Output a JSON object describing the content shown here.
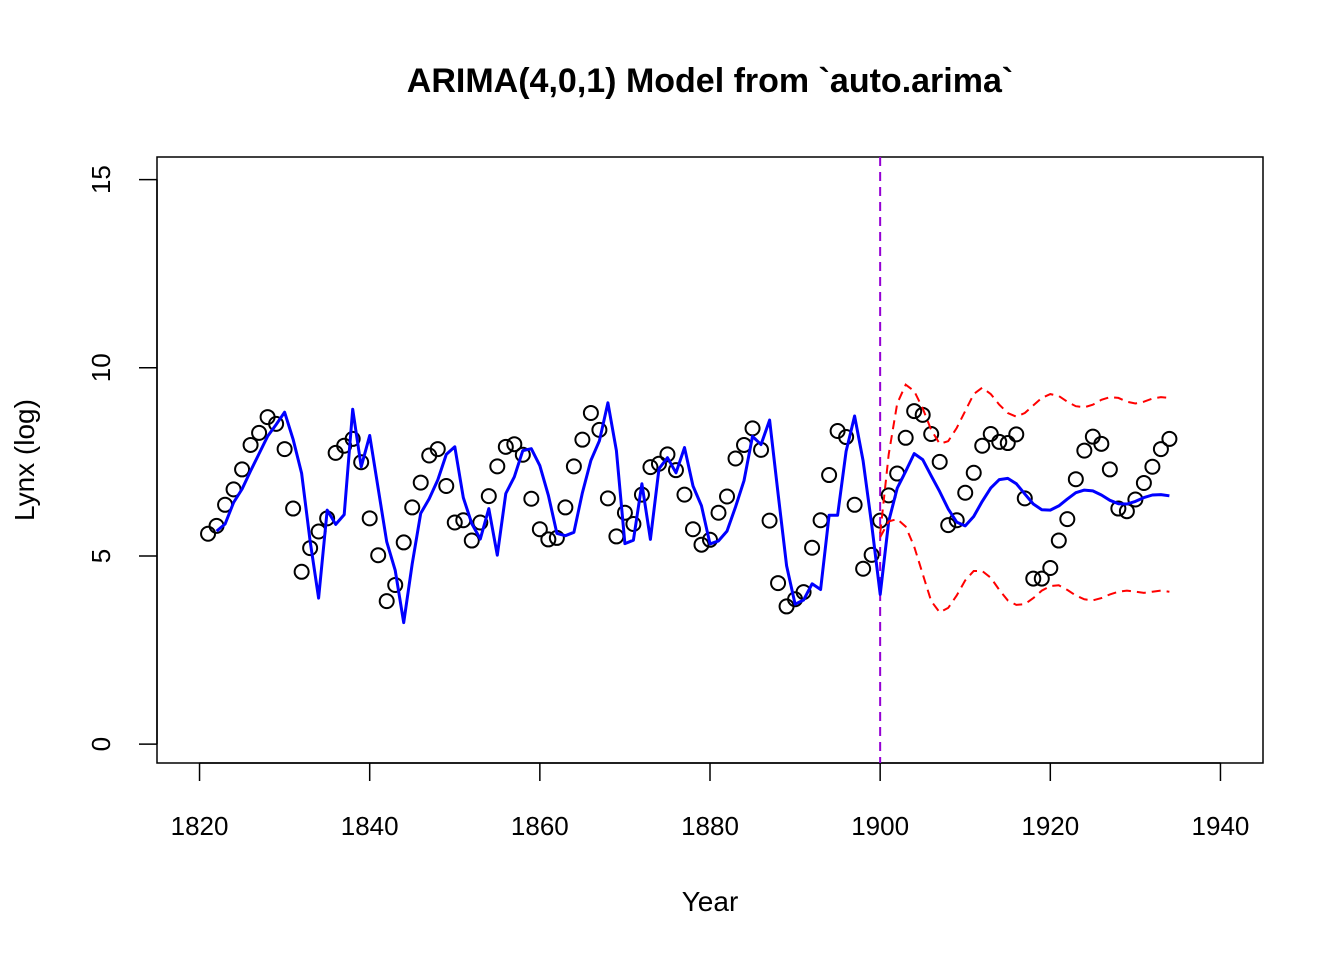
{
  "chart_data": {
    "type": "line",
    "title": "ARIMA(4,0,1) Model from `auto.arima`",
    "xlabel": "Year",
    "ylabel": "Lynx (log)",
    "xlim": [
      1815,
      1945
    ],
    "ylim": [
      -0.5,
      15.6
    ],
    "xticks": [
      1820,
      1840,
      1860,
      1880,
      1900,
      1920,
      1940
    ],
    "yticks": [
      0,
      5,
      10,
      15
    ],
    "grid": false,
    "legend": "none",
    "forecast_start": 1900,
    "colors": {
      "observed": "#000000",
      "fitted": "#0000ff",
      "interval": "#ff0000",
      "divider": "#9400d3"
    },
    "series": [
      {
        "kind": "points",
        "x_start": 1821,
        "values": [
          5.59,
          5.8,
          6.36,
          6.77,
          7.3,
          7.95,
          8.27,
          8.69,
          8.51,
          7.84,
          6.26,
          4.58,
          5.21,
          5.65,
          6.0,
          7.74,
          7.93,
          8.11,
          7.49,
          6.0,
          5.02,
          3.8,
          4.23,
          5.36,
          6.29,
          6.95,
          7.67,
          7.84,
          6.86,
          5.89,
          5.95,
          5.41,
          5.89,
          6.59,
          7.38,
          7.9,
          7.97,
          7.69,
          6.52,
          5.71,
          5.44,
          5.48,
          6.29,
          7.38,
          8.09,
          8.8,
          8.35,
          6.53,
          5.52,
          6.15,
          5.85,
          6.63,
          7.36,
          7.45,
          7.7,
          7.28,
          6.63,
          5.71,
          5.3,
          5.43,
          6.15,
          6.58,
          7.59,
          7.95,
          8.39,
          7.82,
          5.94,
          4.28,
          3.66,
          3.85,
          4.04,
          5.22,
          5.95,
          7.15,
          8.32,
          8.16,
          6.36,
          4.66,
          5.03,
          5.94,
          6.61,
          7.19,
          8.14,
          8.85,
          8.75,
          8.24,
          7.5,
          5.82,
          5.95,
          6.68,
          7.21,
          7.93,
          8.24,
          8.03,
          8.0,
          8.23,
          6.53,
          4.4,
          4.4,
          4.68,
          5.41,
          5.98,
          7.04,
          7.8,
          8.17,
          7.98,
          7.3,
          6.26,
          6.19,
          6.5,
          6.94,
          7.37,
          7.84,
          8.11
        ]
      },
      {
        "kind": "fitted",
        "x_start": 1822,
        "values": [
          5.66,
          5.85,
          6.42,
          6.78,
          7.26,
          7.72,
          8.18,
          8.49,
          8.82,
          8.1,
          7.2,
          5.4,
          3.88,
          6.22,
          5.84,
          6.1,
          8.9,
          7.37,
          8.2,
          6.79,
          5.38,
          4.62,
          3.23,
          4.79,
          6.13,
          6.52,
          7.02,
          7.7,
          7.9,
          6.55,
          5.86,
          5.45,
          6.26,
          5.02,
          6.66,
          7.1,
          7.8,
          7.85,
          7.4,
          6.61,
          5.6,
          5.54,
          5.63,
          6.68,
          7.54,
          8.06,
          9.07,
          7.8,
          5.33,
          5.42,
          6.92,
          5.44,
          7.32,
          7.61,
          7.21,
          7.88,
          6.86,
          6.33,
          5.32,
          5.4,
          5.66,
          6.3,
          7.0,
          8.18,
          7.96,
          8.61,
          6.65,
          4.74,
          3.72,
          3.83,
          4.26,
          4.11,
          6.08,
          6.08,
          7.78,
          8.72,
          7.53,
          5.85,
          3.98,
          5.92,
          6.8,
          7.25,
          7.72,
          7.56,
          7.13,
          6.71,
          6.25,
          5.9,
          5.8,
          6.05,
          6.45,
          6.81,
          7.03,
          7.06,
          6.92,
          6.65,
          6.38,
          6.23,
          6.22,
          6.33,
          6.51,
          6.68,
          6.75,
          6.73,
          6.62,
          6.48,
          6.39,
          6.38,
          6.45,
          6.55,
          6.62,
          6.63,
          6.6
        ]
      },
      {
        "kind": "interval_upper",
        "x_start": 1900,
        "values": [
          5.6,
          7.7,
          9.05,
          9.55,
          9.38,
          8.92,
          8.35,
          7.98,
          8.05,
          8.4,
          8.85,
          9.3,
          9.47,
          9.3,
          9.02,
          8.8,
          8.7,
          8.8,
          9.0,
          9.2,
          9.3,
          9.25,
          9.1,
          8.98,
          8.95,
          9.02,
          9.15,
          9.22,
          9.2,
          9.1,
          9.05,
          9.1,
          9.18,
          9.22,
          9.2
        ]
      },
      {
        "kind": "interval_lower",
        "x_start": 1900,
        "values": [
          5.5,
          5.92,
          5.98,
          5.78,
          5.25,
          4.52,
          3.8,
          3.5,
          3.62,
          3.95,
          4.35,
          4.6,
          4.6,
          4.42,
          4.1,
          3.82,
          3.7,
          3.72,
          3.88,
          4.08,
          4.2,
          4.22,
          4.1,
          3.95,
          3.85,
          3.82,
          3.88,
          3.98,
          4.05,
          4.08,
          4.05,
          4.02,
          4.05,
          4.08,
          4.05
        ]
      }
    ]
  }
}
